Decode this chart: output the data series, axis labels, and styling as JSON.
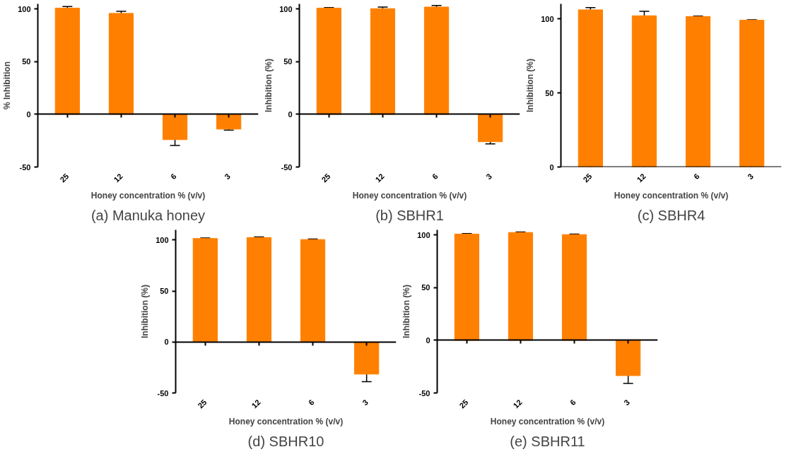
{
  "chart_data": [
    {
      "type": "bar",
      "title": "(a) Manuka honey",
      "xlabel": "Honey concentration % (v/v)",
      "ylabel": "% Inhibition",
      "categories": [
        "25",
        "12",
        "6",
        "3"
      ],
      "values": [
        101,
        96,
        -24,
        -14
      ],
      "errors": [
        1.5,
        2,
        5.5,
        1
      ],
      "color": "#ff8000",
      "ylim": [
        -50,
        105
      ],
      "yticks": [
        -50,
        0,
        50,
        100
      ]
    },
    {
      "type": "bar",
      "title": "(b) SBHR1",
      "xlabel": "Honey concentration % (v/v)",
      "ylabel": "Inhibition (%)",
      "categories": [
        "25",
        "12",
        "6",
        "3"
      ],
      "values": [
        101,
        100.5,
        102,
        -26
      ],
      "errors": [
        0.5,
        1.5,
        1.5,
        2
      ],
      "color": "#ff8000",
      "ylim": [
        -50,
        105
      ],
      "yticks": [
        -50,
        0,
        50,
        100
      ]
    },
    {
      "type": "bar",
      "title": "(c) SBHR4",
      "xlabel": "Honey concentration % (v/v)",
      "ylabel": "Inhibition (%)",
      "categories": [
        "25",
        "12",
        "6",
        "3"
      ],
      "values": [
        106,
        102,
        101.5,
        99
      ],
      "errors": [
        1.5,
        3,
        0.3,
        0.3
      ],
      "color": "#ff8000",
      "ylim": [
        0,
        110
      ],
      "yticks": [
        0,
        50,
        100
      ]
    },
    {
      "type": "bar",
      "title": "(d) SBHR10",
      "xlabel": "Honey concentration % (v/v)",
      "ylabel": "Inhibition (%)",
      "categories": [
        "25",
        "12",
        "6",
        "3"
      ],
      "values": [
        101.5,
        102.5,
        100.5,
        -31.5
      ],
      "errors": [
        0.5,
        0.5,
        0.5,
        7.5
      ],
      "color": "#ff8000",
      "ylim": [
        -50,
        110
      ],
      "yticks": [
        -50,
        0,
        50,
        100
      ]
    },
    {
      "type": "bar",
      "title": "(e) SBHR11",
      "xlabel": "Honey concentration % (v/v)",
      "ylabel": "Inhibition (%)",
      "categories": [
        "25",
        "12",
        "6",
        "3"
      ],
      "values": [
        101,
        102.5,
        100.5,
        -33.5
      ],
      "errors": [
        0.5,
        0.5,
        0.5,
        7.5
      ],
      "color": "#ff8000",
      "ylim": [
        -50,
        105
      ],
      "yticks": [
        -50,
        0,
        50,
        100
      ]
    }
  ]
}
